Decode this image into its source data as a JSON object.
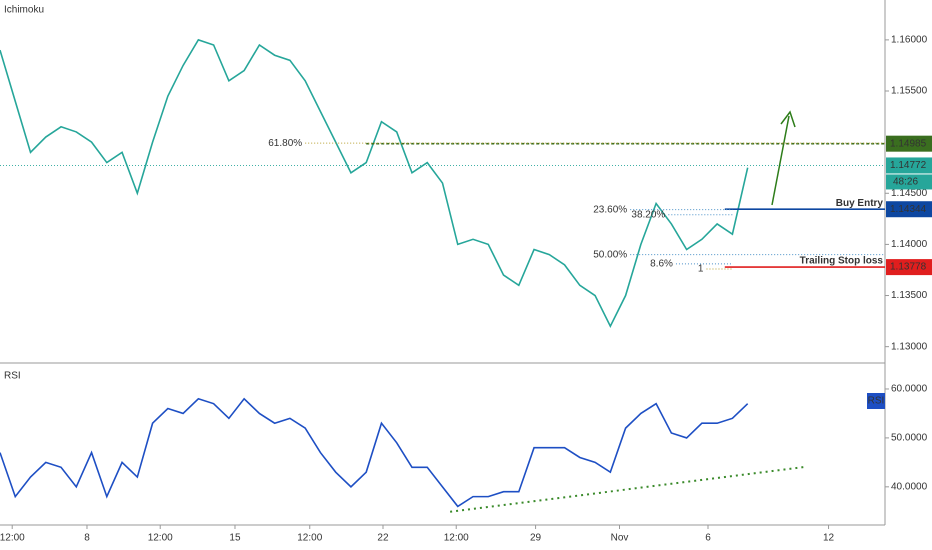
{
  "chart_data": [
    {
      "type": "line",
      "title": "Ichimoku",
      "xlim": [
        0,
        58
      ],
      "xticks": [
        {
          "value": 0.8,
          "label": "12:00"
        },
        {
          "value": 5.7,
          "label": "8"
        },
        {
          "value": 10.5,
          "label": "12:00"
        },
        {
          "value": 15.4,
          "label": "15"
        },
        {
          "value": 20.3,
          "label": "12:00"
        },
        {
          "value": 25.1,
          "label": "22"
        },
        {
          "value": 29.9,
          "label": "12:00"
        },
        {
          "value": 35.1,
          "label": "29"
        },
        {
          "value": 40.6,
          "label": "Nov"
        },
        {
          "value": 46.4,
          "label": "6"
        },
        {
          "value": 54.3,
          "label": "12"
        }
      ],
      "ylim": [
        1.1285,
        1.1639
      ],
      "yticks": [
        {
          "value": 1.13,
          "label": "1.13000"
        },
        {
          "value": 1.135,
          "label": "1.13500"
        },
        {
          "value": 1.14,
          "label": "1.14000"
        },
        {
          "value": 1.145,
          "label": "1.14500"
        },
        {
          "value": 1.155,
          "label": "1.15500"
        },
        {
          "value": 1.16,
          "label": "1.16000"
        }
      ],
      "series": [
        {
          "color": "#26a69a",
          "values": [
            1.159,
            1.154,
            1.149,
            1.1505,
            1.1515,
            1.151,
            1.15,
            1.148,
            1.149,
            1.145,
            1.15,
            1.1545,
            1.1575,
            1.16,
            1.1595,
            1.156,
            1.157,
            1.1595,
            1.1585,
            1.158,
            1.156,
            1.153,
            1.15,
            1.147,
            1.148,
            1.152,
            1.151,
            1.147,
            1.148,
            1.146,
            1.14,
            1.1405,
            1.14,
            1.137,
            1.136,
            1.1395,
            1.139,
            1.138,
            1.136,
            1.135,
            1.132,
            1.135,
            1.14,
            1.144,
            1.142,
            1.1395,
            1.1405,
            1.142,
            1.141,
            1.1475
          ]
        }
      ],
      "levels": [
        {
          "value": 1.14985,
          "color": "#3a6e1f"
        },
        {
          "value": 1.14772,
          "color": "#26a69a"
        },
        {
          "value": 1.14344,
          "color": "#0d47a1",
          "text": "Buy Entry"
        },
        {
          "value": 1.13778,
          "color": "#e01e1e",
          "text": "Trailing Stop loss"
        }
      ],
      "countdown": "48:26",
      "fib": [
        {
          "label": "61.80%",
          "value": 1.1499,
          "x": [
            20,
            58
          ],
          "color": "#b8a030"
        },
        {
          "label": "23.60%",
          "value": 1.1434,
          "x": [
            41.3,
            48
          ],
          "color": "#4a90c8"
        },
        {
          "label": "38.20%",
          "value": 1.1429,
          "x": [
            43.8,
            48
          ],
          "color": "#4a90c8"
        },
        {
          "label": "50.00%",
          "value": 1.139,
          "x": [
            41.3,
            58
          ],
          "color": "#4a90c8"
        },
        {
          "label": "8.6%",
          "value": 1.1381,
          "x": [
            44.3,
            48
          ],
          "color": "#4a90c8"
        },
        {
          "label": "1",
          "value": 1.1376,
          "x": [
            46.3,
            48
          ],
          "color": "#b8a030"
        }
      ]
    },
    {
      "type": "line",
      "title": "RSI",
      "ylim": [
        32.2,
        64.9
      ],
      "yticks": [
        {
          "value": 40,
          "label": "40.0000"
        },
        {
          "value": 50,
          "label": "50.0000"
        },
        {
          "value": 60,
          "label": "60.0000"
        }
      ],
      "series": [
        {
          "name": "RSI",
          "color": "#1e4fc4",
          "values": [
            47,
            38,
            42,
            45,
            44,
            40,
            47,
            38,
            45,
            42,
            53,
            56,
            55,
            58,
            57,
            54,
            58,
            55,
            53,
            54,
            52,
            47,
            43,
            40,
            43,
            53,
            49,
            44,
            44,
            40,
            36,
            38,
            38,
            39,
            39,
            48,
            48,
            48,
            46,
            45,
            43,
            52,
            55,
            57,
            51,
            50,
            53,
            53,
            54,
            57
          ]
        }
      ],
      "trendline": {
        "x": [
          29.5,
          52.8
        ],
        "values": [
          34.9,
          44.1
        ],
        "color": "#3a8a2a"
      }
    }
  ]
}
